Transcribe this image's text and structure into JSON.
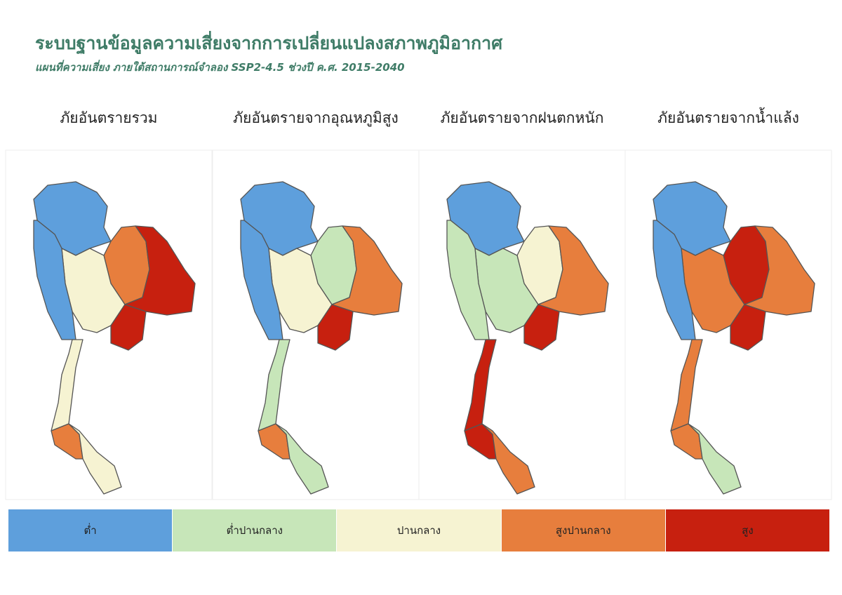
{
  "header": {
    "title": "ระบบฐานข้อมูลความเสี่ยงจากการเปลี่ยนแปลงสภาพภูมิอากาศ",
    "subtitle": "แผนที่ความเสี่ยง ภายใต้สถานการณ์จำลอง SSP2-4.5 ช่วงปี ค.ศ. 2015-2040"
  },
  "panels": [
    {
      "title": "ภัยอันตรายรวม"
    },
    {
      "title": "ภัยอันตรายจากอุณหภูมิสูง"
    },
    {
      "title": "ภัยอันตรายจากฝนตกหนัก"
    },
    {
      "title": "ภัยอันตรายจากน้ำแล้ง"
    }
  ],
  "legend": [
    {
      "label": "ต่ำ",
      "color": "#5e9fdc"
    },
    {
      "label": "ต่ำปานกลาง",
      "color": "#c7e6b9"
    },
    {
      "label": "ปานกลาง",
      "color": "#f6f3d2"
    },
    {
      "label": "สูงปานกลาง",
      "color": "#e77e3d"
    },
    {
      "label": "สูง",
      "color": "#c7200f"
    }
  ]
}
